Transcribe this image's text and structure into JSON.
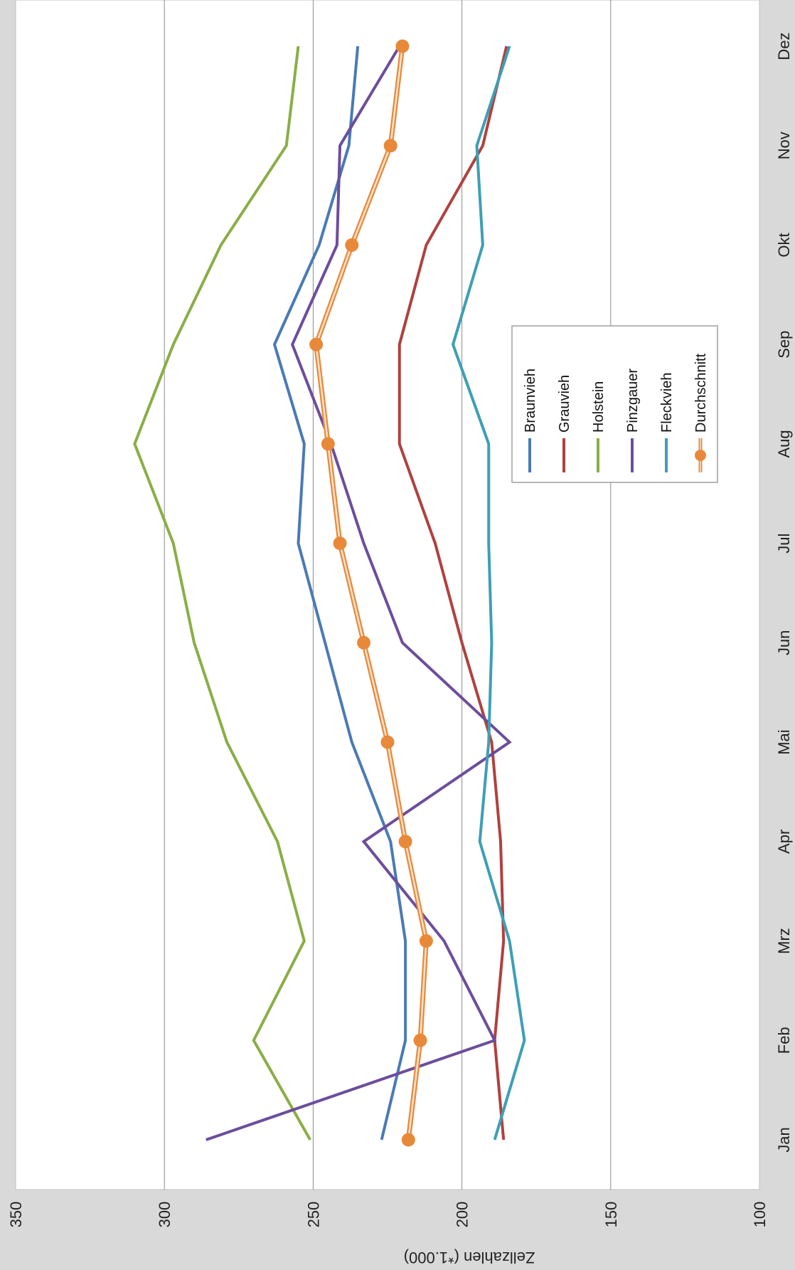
{
  "chart_data": {
    "type": "line",
    "orientation": "rotated-90-clockwise",
    "categories": [
      "Jan",
      "Feb",
      "Mrz",
      "Apr",
      "Mai",
      "Jun",
      "Jul",
      "Aug",
      "Sep",
      "Okt",
      "Nov",
      "Dez"
    ],
    "ylabel": "Zellzahlen (*1.000)",
    "ylim": [
      100,
      350
    ],
    "yticks": [
      350,
      300,
      250,
      200,
      150,
      100
    ],
    "grid": true,
    "legend_position": "center-right",
    "series": [
      {
        "name": "Braunvieh",
        "color": "#4a7ab5",
        "marker": false,
        "values": [
          227,
          219,
          219,
          224,
          237,
          246,
          255,
          253,
          263,
          248,
          238,
          235
        ]
      },
      {
        "name": "Grauvieh",
        "color": "#b0413e",
        "marker": false,
        "values": [
          186,
          189,
          186,
          187,
          190,
          200,
          209,
          221,
          221,
          212,
          193,
          185
        ]
      },
      {
        "name": "Holstein",
        "color": "#8aae46",
        "marker": false,
        "values": [
          251,
          270,
          253,
          262,
          279,
          290,
          297,
          310,
          297,
          281,
          259,
          255
        ]
      },
      {
        "name": "Pinzgauer",
        "color": "#6c4d9c",
        "marker": false,
        "values": [
          286,
          189,
          206,
          233,
          184,
          220,
          233,
          244,
          257,
          242,
          241,
          221
        ]
      },
      {
        "name": "Fleckvieh",
        "color": "#3d9fb5",
        "marker": false,
        "values": [
          189,
          179,
          184,
          194,
          191,
          190,
          191,
          191,
          203,
          193,
          195,
          184
        ]
      },
      {
        "name": "Durchschnitt",
        "color": "#e8893a",
        "marker": true,
        "values": [
          218,
          214,
          212,
          219,
          225,
          233,
          241,
          245,
          249,
          237,
          224,
          220
        ]
      }
    ]
  }
}
